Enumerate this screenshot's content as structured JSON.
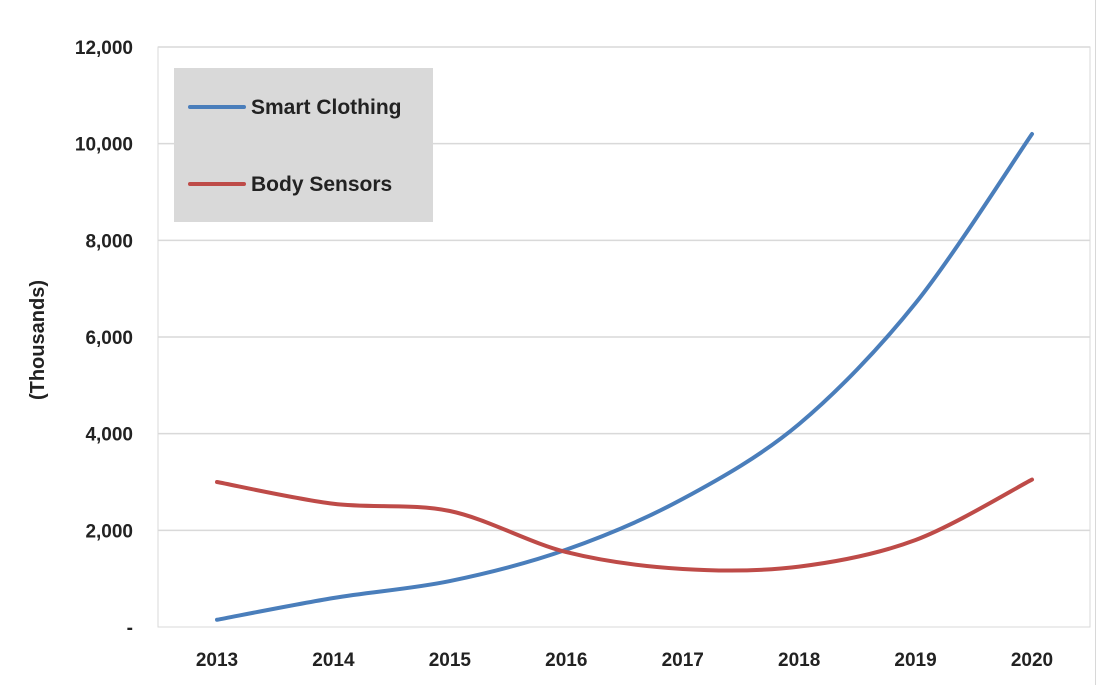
{
  "chart_data": {
    "type": "line",
    "title": "",
    "xlabel": "",
    "ylabel": "(Thousands)",
    "categories": [
      "2013",
      "2014",
      "2015",
      "2016",
      "2017",
      "2018",
      "2019",
      "2020"
    ],
    "ylim": [
      0,
      12000
    ],
    "yticks": [
      0,
      2000,
      4000,
      6000,
      8000,
      10000,
      12000
    ],
    "ytick_labels": [
      "-",
      "2,000",
      "4,000",
      "6,000",
      "8,000",
      "10,000",
      "12,000"
    ],
    "grid": true,
    "legend_position": "top-left",
    "series": [
      {
        "name": "Smart Clothing",
        "color": "#4a7ebb",
        "values": [
          150,
          600,
          950,
          1600,
          2650,
          4200,
          6700,
          10200
        ]
      },
      {
        "name": "Body Sensors",
        "color": "#be4b48",
        "values": [
          3000,
          2550,
          2400,
          1550,
          1200,
          1250,
          1800,
          3050
        ]
      }
    ]
  }
}
